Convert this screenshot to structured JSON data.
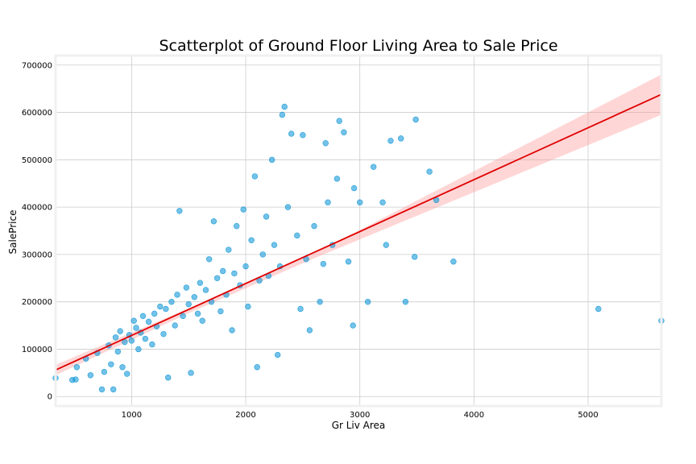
{
  "chart_data": {
    "type": "scatter",
    "title": "Scatterplot of Ground Floor Living Area to Sale Price",
    "xlabel": "Gr Liv Area",
    "ylabel": "SalePrice",
    "xlim": [
      334,
      5642
    ],
    "ylim": [
      -20000,
      720000
    ],
    "x_ticks": [
      1000,
      2000,
      3000,
      4000,
      5000
    ],
    "x_tick_labels": [
      "1000",
      "2000",
      "3000",
      "4000",
      "5000"
    ],
    "y_ticks": [
      0,
      100000,
      200000,
      300000,
      400000,
      500000,
      600000,
      700000
    ],
    "y_tick_labels": [
      "0",
      "100000",
      "200000",
      "300000",
      "400000",
      "500000",
      "600000",
      "700000"
    ],
    "grid": true,
    "series": [
      {
        "kind": "scatter",
        "color": "#008fd5",
        "points": [
          [
            334,
            39000
          ],
          [
            480,
            35000
          ],
          [
            510,
            36000
          ],
          [
            520,
            62000
          ],
          [
            600,
            80000
          ],
          [
            640,
            45000
          ],
          [
            700,
            92000
          ],
          [
            740,
            15000
          ],
          [
            760,
            52000
          ],
          [
            800,
            108000
          ],
          [
            820,
            68000
          ],
          [
            840,
            15000
          ],
          [
            860,
            125000
          ],
          [
            880,
            95000
          ],
          [
            900,
            138000
          ],
          [
            920,
            62000
          ],
          [
            940,
            115000
          ],
          [
            960,
            48000
          ],
          [
            980,
            130000
          ],
          [
            1000,
            118000
          ],
          [
            1020,
            160000
          ],
          [
            1040,
            145000
          ],
          [
            1060,
            100000
          ],
          [
            1080,
            135000
          ],
          [
            1100,
            170000
          ],
          [
            1120,
            122000
          ],
          [
            1150,
            158000
          ],
          [
            1180,
            110000
          ],
          [
            1200,
            175000
          ],
          [
            1220,
            148000
          ],
          [
            1250,
            190000
          ],
          [
            1280,
            132000
          ],
          [
            1300,
            185000
          ],
          [
            1320,
            40000
          ],
          [
            1350,
            200000
          ],
          [
            1380,
            150000
          ],
          [
            1400,
            215000
          ],
          [
            1420,
            392000
          ],
          [
            1450,
            170000
          ],
          [
            1480,
            230000
          ],
          [
            1500,
            195000
          ],
          [
            1520,
            50000
          ],
          [
            1550,
            210000
          ],
          [
            1580,
            175000
          ],
          [
            1600,
            240000
          ],
          [
            1620,
            160000
          ],
          [
            1650,
            225000
          ],
          [
            1680,
            290000
          ],
          [
            1700,
            200000
          ],
          [
            1720,
            370000
          ],
          [
            1750,
            250000
          ],
          [
            1780,
            180000
          ],
          [
            1800,
            265000
          ],
          [
            1830,
            215000
          ],
          [
            1850,
            310000
          ],
          [
            1880,
            140000
          ],
          [
            1900,
            260000
          ],
          [
            1920,
            360000
          ],
          [
            1950,
            235000
          ],
          [
            1980,
            395000
          ],
          [
            2000,
            275000
          ],
          [
            2020,
            190000
          ],
          [
            2050,
            330000
          ],
          [
            2080,
            465000
          ],
          [
            2100,
            62000
          ],
          [
            2120,
            245000
          ],
          [
            2150,
            300000
          ],
          [
            2180,
            380000
          ],
          [
            2200,
            255000
          ],
          [
            2230,
            500000
          ],
          [
            2250,
            320000
          ],
          [
            2280,
            88000
          ],
          [
            2300,
            275000
          ],
          [
            2320,
            595000
          ],
          [
            2340,
            612000
          ],
          [
            2370,
            400000
          ],
          [
            2400,
            555000
          ],
          [
            2450,
            340000
          ],
          [
            2480,
            185000
          ],
          [
            2500,
            552000
          ],
          [
            2530,
            290000
          ],
          [
            2560,
            140000
          ],
          [
            2600,
            360000
          ],
          [
            2650,
            200000
          ],
          [
            2680,
            280000
          ],
          [
            2700,
            535000
          ],
          [
            2720,
            410000
          ],
          [
            2760,
            320000
          ],
          [
            2800,
            460000
          ],
          [
            2820,
            582000
          ],
          [
            2860,
            558000
          ],
          [
            2900,
            285000
          ],
          [
            2940,
            150000
          ],
          [
            2950,
            440000
          ],
          [
            3000,
            410000
          ],
          [
            3070,
            200000
          ],
          [
            3120,
            485000
          ],
          [
            3200,
            410000
          ],
          [
            3230,
            320000
          ],
          [
            3270,
            540000
          ],
          [
            3360,
            545000
          ],
          [
            3400,
            200000
          ],
          [
            3490,
            585000
          ],
          [
            3480,
            295000
          ],
          [
            3610,
            475000
          ],
          [
            3670,
            415000
          ],
          [
            3820,
            285000
          ],
          [
            5090,
            185000
          ],
          [
            5642,
            160000
          ]
        ]
      },
      {
        "kind": "line",
        "color": "#e00000",
        "x": [
          334,
          5642
        ],
        "y": [
          56000,
          638000
        ]
      },
      {
        "kind": "band",
        "color": "#ff9999",
        "x": [
          334,
          1500,
          2600,
          5642
        ],
        "upper": [
          67000,
          186000,
          302000,
          680000
        ],
        "lower": [
          45000,
          176000,
          292000,
          595000
        ]
      }
    ]
  }
}
